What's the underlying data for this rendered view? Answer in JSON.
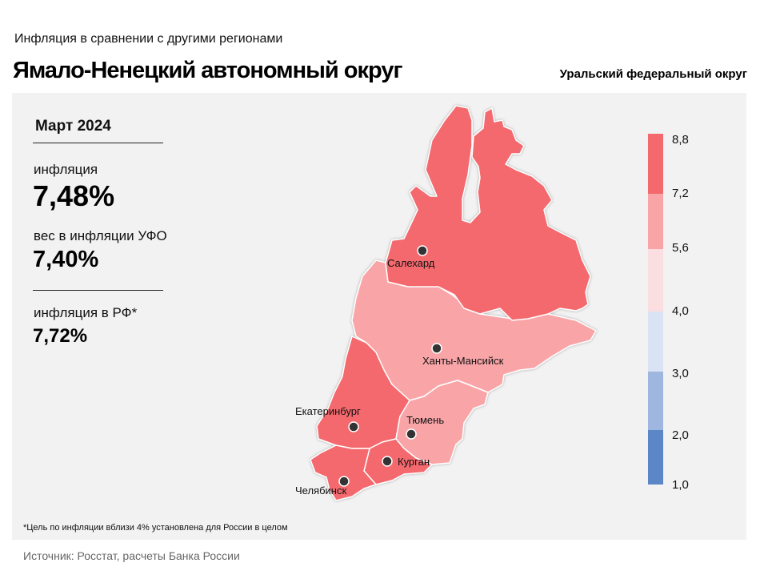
{
  "header": {
    "subtitle": "Инфляция  в сравнении  с другими  регионами",
    "title": "Ямало-Ненецкий автономный округ",
    "district": "Уральский федеральный округ"
  },
  "stats": {
    "period": "Март 2024",
    "inflation_label": "инфляция",
    "inflation_value": "7,48%",
    "weight_label": "вес в инфляции  УФО",
    "weight_value": "7,40%",
    "rf_label": "инфляция  в РФ*",
    "rf_value": "7,72%"
  },
  "legend": {
    "ticks": [
      "8,8",
      "7,2",
      "5,6",
      "4,0",
      "3,0",
      "2,0",
      "1,0"
    ],
    "colors": [
      "#f4696e",
      "#f9a5a8",
      "#fbdee0",
      "#dae3f4",
      "#9fb7de",
      "#5b87c6"
    ]
  },
  "map": {
    "regions": [
      {
        "name": "Ямало-Ненецкий АО",
        "color": "#f4696e"
      },
      {
        "name": "Ханты-Мансийский АО",
        "color": "#f9a5a8"
      },
      {
        "name": "Свердловская область",
        "color": "#f4696e"
      },
      {
        "name": "Тюменская область",
        "color": "#f9a5a8"
      },
      {
        "name": "Курганская область",
        "color": "#f4696e"
      },
      {
        "name": "Челябинская область",
        "color": "#f4696e"
      }
    ],
    "cities": {
      "salekhard": "Салехард",
      "khanty": "Ханты-Мансийск",
      "ekaterinburg": "Екатеринбург",
      "tyumen": "Тюмень",
      "kurgan": "Курган",
      "chelyabinsk": "Челябинск"
    }
  },
  "footnote": "*Цель по инфляции вблизи 4% установлена для России в целом",
  "source": "Источник: Росстат, расчеты Банка России"
}
